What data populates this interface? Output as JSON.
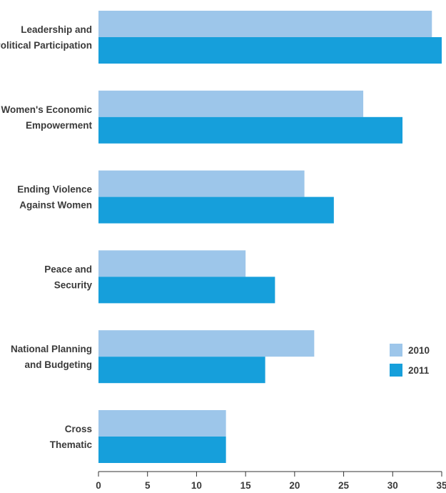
{
  "chart_data": {
    "type": "bar",
    "orientation": "horizontal",
    "categories": [
      [
        "Leadership and",
        "Political Participation"
      ],
      [
        "Women's Economic",
        "Empowerment"
      ],
      [
        "Ending Violence",
        "Against Women"
      ],
      [
        "Peace and",
        "Security"
      ],
      [
        "National Planning",
        "and Budgeting"
      ],
      [
        "Cross",
        "Thematic"
      ]
    ],
    "series": [
      {
        "name": "2010",
        "color": "#9dc6ea",
        "values": [
          34,
          27,
          21,
          15,
          22,
          13
        ]
      },
      {
        "name": "2011",
        "color": "#169fdb",
        "values": [
          35,
          31,
          24,
          18,
          17,
          13
        ]
      }
    ],
    "xticks": [
      0,
      5,
      10,
      15,
      20,
      25,
      30,
      35
    ],
    "xlim": [
      0,
      35
    ],
    "grid": false,
    "legend_position": "right"
  }
}
